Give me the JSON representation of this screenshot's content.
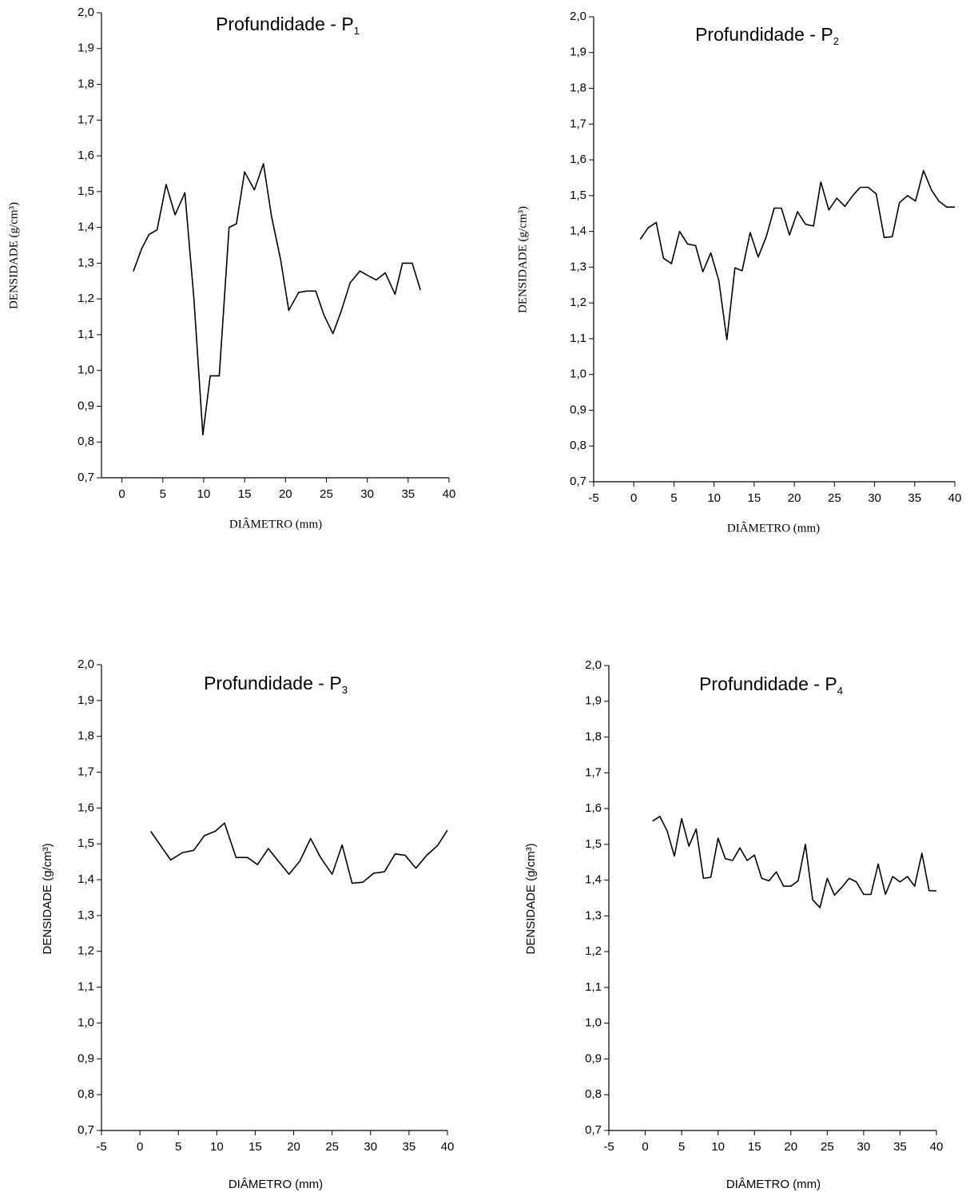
{
  "chart_data": [
    {
      "type": "line",
      "title": "Profundidade - P",
      "title_sub": "1",
      "x_label": "DIÂMETRO (mm)",
      "y_label": "DENSIDADE (g/cm³)",
      "color": "#000000",
      "xlim": [
        -2.5,
        40
      ],
      "xticks": [
        0,
        5,
        10,
        15,
        20,
        25,
        30,
        35,
        40
      ],
      "ylim": [
        0.7,
        2.0
      ],
      "yticks": [
        {
          "value": 0.7,
          "label": "0,7"
        },
        {
          "value": 0.8,
          "label": "0,8"
        },
        {
          "value": 0.9,
          "label": "0,9"
        },
        {
          "value": 1.0,
          "label": "1,0"
        },
        {
          "value": 1.1,
          "label": "1,1"
        },
        {
          "value": 1.2,
          "label": "1,2"
        },
        {
          "value": 1.3,
          "label": "1,3"
        },
        {
          "value": 1.4,
          "label": "1,4"
        },
        {
          "value": 1.5,
          "label": "1,5"
        },
        {
          "value": 1.6,
          "label": "1,6"
        },
        {
          "value": 1.7,
          "label": "1,7"
        },
        {
          "value": 1.8,
          "label": "1,8"
        },
        {
          "value": 1.9,
          "label": "1,9"
        },
        {
          "value": 2.0,
          "label": "2,0"
        }
      ],
      "x": [
        1.4,
        2.4,
        3.3,
        4.3,
        5.4,
        6.5,
        7.7,
        8.8,
        9.9,
        10.8,
        11.9,
        13.1,
        14.0,
        15.0,
        16.2,
        17.3,
        18.3,
        19.4,
        20.4,
        21.6,
        22.6,
        23.7,
        24.7,
        25.8,
        26.8,
        27.9,
        29.1,
        30.1,
        31.1,
        32.2,
        33.4,
        34.3,
        35.5,
        36.5
      ],
      "values": [
        1.277,
        1.34,
        1.38,
        1.393,
        1.52,
        1.435,
        1.497,
        1.2,
        0.82,
        0.985,
        0.985,
        1.4,
        1.41,
        1.555,
        1.505,
        1.578,
        1.43,
        1.31,
        1.168,
        1.218,
        1.222,
        1.222,
        1.155,
        1.103,
        1.165,
        1.245,
        1.278,
        1.265,
        1.253,
        1.273,
        1.213,
        1.3,
        1.3,
        1.225
      ]
    },
    {
      "type": "line",
      "title": "Profundidade - P",
      "title_sub": "2",
      "x_label": "DIÂMETRO (mm)",
      "y_label": "DENSIDADE (g/cm³)",
      "color": "#000000",
      "xlim": [
        -5,
        40
      ],
      "xticks": [
        -5,
        0,
        5,
        10,
        15,
        20,
        25,
        30,
        35,
        40
      ],
      "ylim": [
        0.7,
        2.0
      ],
      "yticks": [
        {
          "value": 0.7,
          "label": "0,7"
        },
        {
          "value": 0.8,
          "label": "0,8"
        },
        {
          "value": 0.9,
          "label": "0,9"
        },
        {
          "value": 1.0,
          "label": "1,0"
        },
        {
          "value": 1.1,
          "label": "1,1"
        },
        {
          "value": 1.2,
          "label": "1,2"
        },
        {
          "value": 1.3,
          "label": "1,3"
        },
        {
          "value": 1.4,
          "label": "1,4"
        },
        {
          "value": 1.5,
          "label": "1,5"
        },
        {
          "value": 1.6,
          "label": "1,6"
        },
        {
          "value": 1.7,
          "label": "1,7"
        },
        {
          "value": 1.8,
          "label": "1,8"
        },
        {
          "value": 1.9,
          "label": "1,9"
        },
        {
          "value": 2.0,
          "label": "2,0"
        }
      ],
      "x": [
        0.8,
        1.8,
        2.8,
        3.7,
        4.7,
        5.7,
        6.7,
        7.7,
        8.6,
        9.6,
        10.6,
        11.6,
        12.6,
        13.5,
        14.5,
        15.5,
        16.5,
        17.5,
        18.4,
        19.4,
        20.4,
        21.4,
        22.4,
        23.3,
        24.3,
        25.3,
        26.3,
        27.3,
        28.2,
        29.2,
        30.2,
        31.2,
        32.2,
        33.1,
        34.1,
        35.1,
        36.1,
        37.1,
        38.0,
        39.0,
        40.0
      ],
      "values": [
        1.378,
        1.41,
        1.425,
        1.325,
        1.31,
        1.4,
        1.365,
        1.36,
        1.287,
        1.34,
        1.262,
        1.097,
        1.298,
        1.29,
        1.397,
        1.328,
        1.385,
        1.465,
        1.465,
        1.39,
        1.455,
        1.42,
        1.415,
        1.538,
        1.46,
        1.493,
        1.47,
        1.5,
        1.523,
        1.523,
        1.505,
        1.383,
        1.385,
        1.48,
        1.5,
        1.485,
        1.57,
        1.515,
        1.485,
        1.468,
        1.468
      ]
    },
    {
      "type": "line",
      "title": "Profundidade - P",
      "title_sub": "3",
      "x_label": "DIÂMETRO (mm)",
      "y_label": "DENSIDADE (g/cm³)",
      "color": "#000000",
      "xlim": [
        -5,
        40
      ],
      "xticks": [
        -5,
        0,
        5,
        10,
        15,
        20,
        25,
        30,
        35,
        40
      ],
      "ylim": [
        0.7,
        2.0
      ],
      "yticks": [
        {
          "value": 0.7,
          "label": "0,7"
        },
        {
          "value": 0.8,
          "label": "0,8"
        },
        {
          "value": 0.9,
          "label": "0,9"
        },
        {
          "value": 1.0,
          "label": "1,0"
        },
        {
          "value": 1.1,
          "label": "1,1"
        },
        {
          "value": 1.2,
          "label": "1,2"
        },
        {
          "value": 1.3,
          "label": "1,3"
        },
        {
          "value": 1.4,
          "label": "1,4"
        },
        {
          "value": 1.5,
          "label": "1,5"
        },
        {
          "value": 1.6,
          "label": "1,6"
        },
        {
          "value": 1.7,
          "label": "1,7"
        },
        {
          "value": 1.8,
          "label": "1,8"
        },
        {
          "value": 1.9,
          "label": "1,9"
        },
        {
          "value": 2.0,
          "label": "2,0"
        }
      ],
      "x": [
        1.4,
        4.0,
        5.5,
        7.0,
        8.4,
        9.8,
        11.0,
        12.5,
        14.0,
        15.3,
        16.7,
        18.0,
        19.4,
        20.8,
        22.2,
        23.5,
        25.0,
        26.3,
        27.6,
        29.0,
        30.4,
        31.8,
        33.2,
        34.5,
        35.9,
        37.3,
        38.7,
        40.0
      ],
      "values": [
        1.535,
        1.455,
        1.475,
        1.482,
        1.523,
        1.535,
        1.558,
        1.462,
        1.462,
        1.442,
        1.487,
        1.452,
        1.415,
        1.452,
        1.515,
        1.462,
        1.415,
        1.497,
        1.39,
        1.393,
        1.418,
        1.422,
        1.472,
        1.468,
        1.432,
        1.468,
        1.495,
        1.538
      ]
    },
    {
      "type": "line",
      "title": "Profundidade - P",
      "title_sub": "4",
      "x_label": "DIÂMETRO (mm)",
      "y_label": "DENSIDADE (g/cm³)",
      "color": "#000000",
      "xlim": [
        -5,
        40
      ],
      "xticks": [
        -5,
        0,
        5,
        10,
        15,
        20,
        25,
        30,
        35,
        40
      ],
      "ylim": [
        0.7,
        2.0
      ],
      "yticks": [
        {
          "value": 0.7,
          "label": "0,7"
        },
        {
          "value": 0.8,
          "label": "0,8"
        },
        {
          "value": 0.9,
          "label": "0,9"
        },
        {
          "value": 1.0,
          "label": "1,0"
        },
        {
          "value": 1.1,
          "label": "1,1"
        },
        {
          "value": 1.2,
          "label": "1,2"
        },
        {
          "value": 1.3,
          "label": "1,3"
        },
        {
          "value": 1.4,
          "label": "1,4"
        },
        {
          "value": 1.5,
          "label": "1,5"
        },
        {
          "value": 1.6,
          "label": "1,6"
        },
        {
          "value": 1.7,
          "label": "1,7"
        },
        {
          "value": 1.8,
          "label": "1,8"
        },
        {
          "value": 1.9,
          "label": "1,9"
        },
        {
          "value": 2.0,
          "label": "2,0"
        }
      ],
      "x": [
        1,
        2,
        3,
        4,
        5,
        6,
        7,
        8,
        9,
        10,
        11,
        12,
        13,
        14,
        15,
        16,
        17,
        18,
        19,
        20,
        21,
        22,
        23,
        24,
        25,
        26,
        27,
        28,
        29,
        30,
        31,
        32,
        33,
        34,
        35,
        36,
        37,
        38,
        39,
        40
      ],
      "values": [
        1.565,
        1.578,
        1.538,
        1.467,
        1.572,
        1.495,
        1.543,
        1.405,
        1.408,
        1.517,
        1.46,
        1.455,
        1.49,
        1.455,
        1.47,
        1.405,
        1.398,
        1.423,
        1.383,
        1.383,
        1.398,
        1.5,
        1.345,
        1.323,
        1.405,
        1.358,
        1.38,
        1.405,
        1.395,
        1.36,
        1.36,
        1.445,
        1.36,
        1.41,
        1.395,
        1.41,
        1.383,
        1.475,
        1.37,
        1.37
      ]
    }
  ]
}
